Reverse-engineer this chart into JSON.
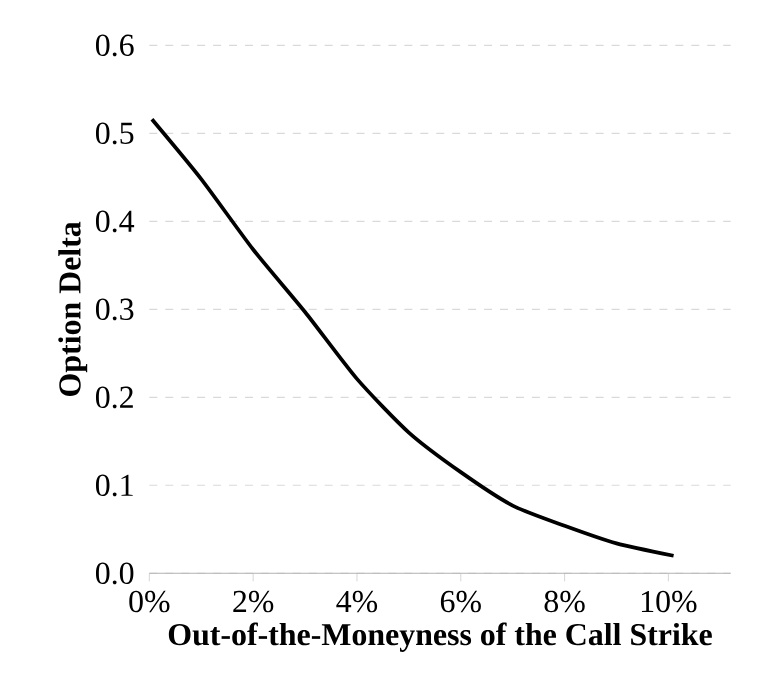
{
  "chart_data": {
    "type": "line",
    "xlabel": "Out-of-the-Moneyness of the Call Strike",
    "ylabel": "Option Delta",
    "series": [
      {
        "color": "#000000",
        "x": [
          0.05,
          1,
          2,
          3,
          4,
          5,
          6,
          7,
          8,
          9,
          10.1
        ],
        "values": [
          0.516,
          0.448,
          0.368,
          0.297,
          0.221,
          0.16,
          0.115,
          0.077,
          0.054,
          0.034,
          0.02
        ]
      }
    ],
    "xlim": [
      0,
      11.2
    ],
    "ylim": [
      0,
      0.6
    ],
    "xticks": [
      {
        "value": 0,
        "label": "0%"
      },
      {
        "value": 2,
        "label": "2%"
      },
      {
        "value": 4,
        "label": "4%"
      },
      {
        "value": 6,
        "label": "6%"
      },
      {
        "value": 8,
        "label": "8%"
      },
      {
        "value": 10,
        "label": "10%"
      }
    ],
    "yticks": [
      {
        "value": 0,
        "label": "0.0"
      },
      {
        "value": 0.1,
        "label": "0.1"
      },
      {
        "value": 0.2,
        "label": "0.2"
      },
      {
        "value": 0.3,
        "label": "0.3"
      },
      {
        "value": 0.4,
        "label": "0.4"
      },
      {
        "value": 0.5,
        "label": "0.5"
      },
      {
        "value": 0.6,
        "label": "0.6"
      }
    ],
    "grid": "y",
    "marker": "none",
    "line_style": "solid"
  }
}
